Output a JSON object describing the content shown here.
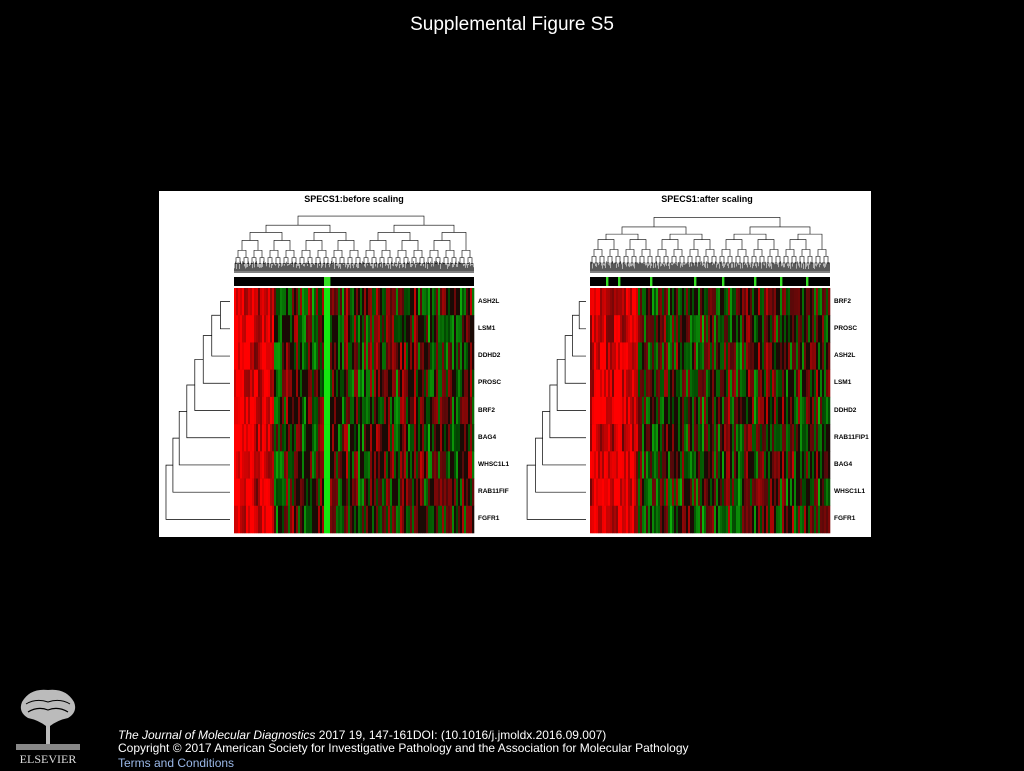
{
  "slide": {
    "title": "Supplemental Figure S5"
  },
  "chart_data": [
    {
      "type": "heatmap",
      "title": "SPECS1:before scaling",
      "rows": [
        "ASH2L",
        "LSM1",
        "DDHD2",
        "PROSC",
        "BRF2",
        "BAG4",
        "WHSC1L1",
        "RAB11FIF",
        "FGFR1"
      ],
      "colors": {
        "high": "#ff2020",
        "low": "#33dd22",
        "mid": "#000000"
      }
    },
    {
      "type": "heatmap",
      "title": "SPECS1:after scaling",
      "rows": [
        "BRF2",
        "PROSC",
        "ASH2L",
        "LSM1",
        "DDHD2",
        "RAB11FIP1",
        "BAG4",
        "WHSC1L1",
        "FGFR1"
      ],
      "colors": {
        "high": "#ff2020",
        "low": "#33dd22",
        "mid": "#000000"
      }
    }
  ],
  "footer": {
    "journal": "The Journal of Molecular Diagnostics",
    "citation_rest": " 2017 19, 147-161DOI: (10.1016/j.jmoldx.2016.09.007)",
    "copyright": "Copyright © 2017 American Society for Investigative Pathology and the Association for Molecular Pathology",
    "terms_link": "Terms and Conditions",
    "logo_text": "ELSEVIER"
  }
}
